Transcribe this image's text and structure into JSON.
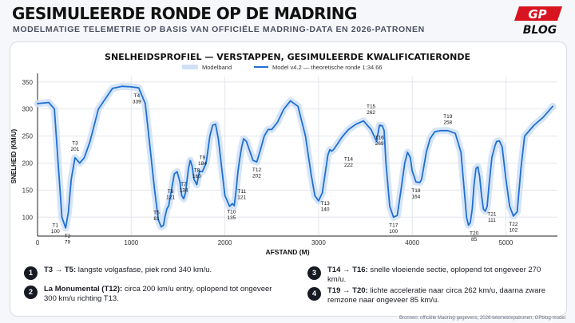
{
  "title": "GESIMULEERDE RONDE OP DE MADRING",
  "subtitle": "MODELMATIGE TELEMETRIE OP BASIS VAN OFFICIËLE MADRING-DATA EN 2026-PATRONEN",
  "logo": {
    "top": "GP",
    "bottom": "BLOG"
  },
  "colors": {
    "line": "#1f6fd1",
    "band": "#cfe1f6",
    "accent": "#d7141f",
    "ink": "#111111"
  },
  "chart_data": {
    "type": "line",
    "title": "SNELHEIDSPROFIEL — VERSTAPPEN, GESIMULEERDE KWALIFICATIERONDE",
    "xlabel": "AFSTAND (M)",
    "ylabel": "SNELHEID (KM/U)",
    "xlim": [
      0,
      5550
    ],
    "ylim": [
      65,
      360
    ],
    "xticks": [
      "0",
      "1000",
      "2000",
      "3000",
      "4000",
      "5000"
    ],
    "yticks": [
      "100",
      "150",
      "200",
      "250",
      "300",
      "350"
    ],
    "grid": true,
    "legend_position": "top-center",
    "legend": [
      "Modelband",
      "Model v4.2 — theoretische ronde 1:34.66"
    ],
    "x": [
      0,
      120,
      180,
      220,
      260,
      300,
      330,
      360,
      400,
      450,
      500,
      560,
      650,
      800,
      900,
      1000,
      1080,
      1150,
      1200,
      1250,
      1290,
      1320,
      1345,
      1360,
      1380,
      1400,
      1430,
      1460,
      1490,
      1520,
      1540,
      1560,
      1580,
      1610,
      1630,
      1650,
      1670,
      1700,
      1730,
      1760,
      1800,
      1840,
      1870,
      1900,
      1930,
      1960,
      2000,
      2050,
      2080,
      2100,
      2120,
      2140,
      2160,
      2180,
      2200,
      2230,
      2260,
      2300,
      2340,
      2380,
      2420,
      2460,
      2500,
      2560,
      2630,
      2700,
      2780,
      2860,
      2920,
      2960,
      3000,
      3040,
      3070,
      3100,
      3120,
      3140,
      3160,
      3200,
      3250,
      3320,
      3400,
      3480,
      3560,
      3620,
      3650,
      3680,
      3700,
      3720,
      3760,
      3800,
      3840,
      3880,
      3920,
      3950,
      3980,
      4000,
      4040,
      4080,
      4100,
      4120,
      4150,
      4190,
      4240,
      4300,
      4380,
      4460,
      4520,
      4560,
      4580,
      4600,
      4620,
      4640,
      4660,
      4680,
      4700,
      4720,
      4740,
      4760,
      4780,
      4800,
      4820,
      4850,
      4880,
      4900,
      4930,
      4960,
      5000,
      5040,
      5080,
      5120,
      5160,
      5200,
      5300,
      5400,
      5500
    ],
    "y": [
      310,
      312,
      300,
      200,
      100,
      80,
      110,
      170,
      210,
      200,
      210,
      240,
      300,
      338,
      342,
      341,
      339,
      310,
      230,
      150,
      95,
      82,
      85,
      100,
      115,
      121,
      150,
      180,
      184,
      165,
      140,
      134,
      145,
      188,
      205,
      195,
      170,
      160,
      185,
      184,
      200,
      250,
      270,
      272,
      245,
      200,
      140,
      120,
      125,
      121,
      150,
      185,
      210,
      230,
      245,
      240,
      225,
      205,
      202,
      225,
      250,
      262,
      262,
      275,
      300,
      315,
      305,
      250,
      180,
      140,
      130,
      145,
      180,
      215,
      225,
      222,
      225,
      235,
      248,
      262,
      272,
      278,
      262,
      240,
      270,
      269,
      260,
      200,
      120,
      100,
      103,
      150,
      200,
      220,
      210,
      185,
      165,
      164,
      170,
      190,
      220,
      245,
      258,
      260,
      260,
      255,
      220,
      140,
      100,
      85,
      90,
      115,
      160,
      190,
      193,
      175,
      140,
      115,
      111,
      120,
      160,
      210,
      230,
      240,
      241,
      230,
      170,
      120,
      102,
      110,
      190,
      250,
      270,
      285,
      305
    ]
  },
  "corners": [
    {
      "label": "T1",
      "speed": "100",
      "x": 190,
      "y": 100,
      "pos": "below"
    },
    {
      "label": "T2",
      "speed": "79",
      "x": 320,
      "y": 80,
      "pos": "below"
    },
    {
      "label": "T3",
      "speed": "201",
      "x": 400,
      "y": 210,
      "pos": "above"
    },
    {
      "label": "T4",
      "speed": "339",
      "x": 1060,
      "y": 339,
      "pos": "below"
    },
    {
      "label": "T5",
      "speed": "81",
      "x": 1270,
      "y": 82,
      "pos": "above"
    },
    {
      "label": "T6",
      "speed": "121",
      "x": 1420,
      "y": 121,
      "pos": "above"
    },
    {
      "label": "T7",
      "speed": "134",
      "x": 1560,
      "y": 134,
      "pos": "above"
    },
    {
      "label": "T8",
      "speed": "160",
      "x": 1700,
      "y": 160,
      "pos": "above"
    },
    {
      "label": "T9",
      "speed": "184",
      "x": 1760,
      "y": 184,
      "pos": "above"
    },
    {
      "label": "T10",
      "speed": "135",
      "x": 2070,
      "y": 125,
      "pos": "below"
    },
    {
      "label": "T11",
      "speed": "121",
      "x": 2180,
      "y": 121,
      "pos": "above"
    },
    {
      "label": "T12",
      "speed": "202",
      "x": 2340,
      "y": 202,
      "pos": "below"
    },
    {
      "label": "T13",
      "speed": "140",
      "x": 3070,
      "y": 140,
      "pos": "below"
    },
    {
      "label": "T14",
      "speed": "222",
      "x": 3320,
      "y": 222,
      "pos": "below"
    },
    {
      "label": "T15",
      "speed": "262",
      "x": 3560,
      "y": 278,
      "pos": "above"
    },
    {
      "label": "T16",
      "speed": "269",
      "x": 3650,
      "y": 262,
      "pos": "below"
    },
    {
      "label": "T17",
      "speed": "100",
      "x": 3800,
      "y": 100,
      "pos": "below"
    },
    {
      "label": "T18",
      "speed": "164",
      "x": 4040,
      "y": 164,
      "pos": "below"
    },
    {
      "label": "T19",
      "speed": "258",
      "x": 4380,
      "y": 260,
      "pos": "above"
    },
    {
      "label": "T20",
      "speed": "85",
      "x": 4660,
      "y": 85,
      "pos": "below"
    },
    {
      "label": "T21",
      "speed": "111",
      "x": 4850,
      "y": 120,
      "pos": "below"
    },
    {
      "label": "T22",
      "speed": "102",
      "x": 5080,
      "y": 102,
      "pos": "below"
    }
  ],
  "notes": [
    {
      "num": "1",
      "head": "T3 → T5:",
      "text": "langste volgasfase, piek rond 340 km/u."
    },
    {
      "num": "2",
      "head": "La Monumental (T12):",
      "text": "circa 200 km/u entry, oplopend tot ongeveer 300 km/u richting T13."
    },
    {
      "num": "3",
      "head": "T14 → T16:",
      "text": "snelle vloeiende sectie, oplopend tot ongeveer 270 km/u."
    },
    {
      "num": "4",
      "head": "T19 → T20:",
      "text": "lichte acceleratie naar circa 262 km/u, daarna zware remzone naar ongeveer 85 km/u."
    }
  ],
  "source": "Bronnen: officiële Madring-gegevens, 2026-telemetriepatronen, GPblog-model"
}
